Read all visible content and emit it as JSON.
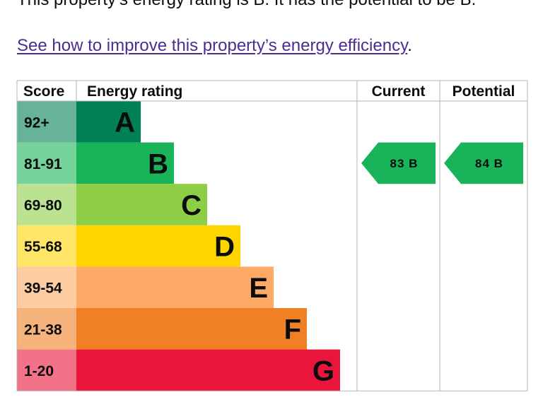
{
  "intro_text": "This property’s energy rating is B. It has the potential to be B.",
  "link": {
    "text": "See how to improve this property’s energy efficiency",
    "suffix": "."
  },
  "chart_data": {
    "type": "table",
    "headers": {
      "score": "Score",
      "rating": "Energy rating",
      "current": "Current",
      "potential": "Potential"
    },
    "bands": [
      {
        "range": "92+",
        "letter": "A",
        "color": "#008054",
        "score_bg": "#66b398"
      },
      {
        "range": "81-91",
        "letter": "B",
        "color": "#19b459",
        "score_bg": "#75d29b"
      },
      {
        "range": "69-80",
        "letter": "C",
        "color": "#8dce46",
        "score_bg": "#bbe290"
      },
      {
        "range": "55-68",
        "letter": "D",
        "color": "#ffd500",
        "score_bg": "#ffe666"
      },
      {
        "range": "39-54",
        "letter": "E",
        "color": "#fcaa65",
        "score_bg": "#fdcca3"
      },
      {
        "range": "21-38",
        "letter": "F",
        "color": "#ef8023",
        "score_bg": "#f5b37b"
      },
      {
        "range": "1-20",
        "letter": "G",
        "color": "#e9153b",
        "score_bg": "#f27389"
      }
    ],
    "current": {
      "score": 83,
      "band": "B",
      "label": "83 B"
    },
    "potential": {
      "score": 84,
      "band": "B",
      "label": "84 B"
    },
    "arrow_color": "#19b459"
  }
}
